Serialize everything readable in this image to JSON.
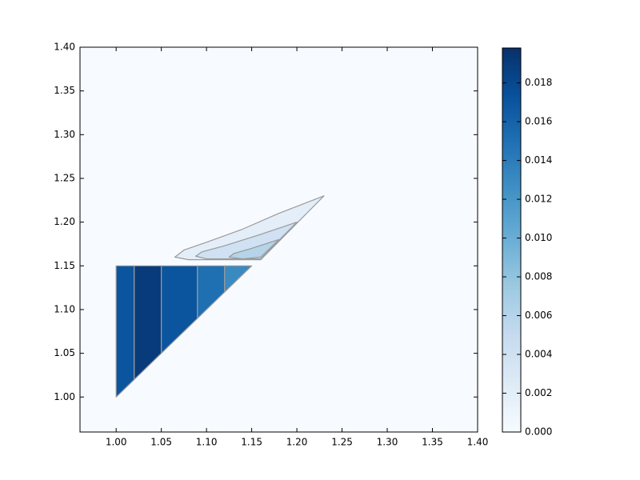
{
  "chart_data": {
    "type": "contourf",
    "colormap": "Blues",
    "xlim": [
      0.96,
      1.4
    ],
    "ylim": [
      0.96,
      1.4
    ],
    "xticks": [
      {
        "value": 1.0,
        "label": "1.00"
      },
      1.05,
      {
        "value": 1.1,
        "label": "1.10"
      },
      1.15,
      {
        "value": 1.2,
        "label": "1.20"
      },
      1.25,
      {
        "value": 1.3,
        "label": "1.30"
      },
      1.35,
      {
        "value": 1.4,
        "label": "1.40"
      }
    ],
    "yticks": [
      {
        "value": 1.0,
        "label": "1.00"
      },
      1.05,
      {
        "value": 1.1,
        "label": "1.10"
      },
      1.15,
      {
        "value": 1.2,
        "label": "1.20"
      },
      1.25,
      {
        "value": 1.3,
        "label": "1.30"
      },
      1.35,
      {
        "value": 1.4,
        "label": "1.40"
      }
    ],
    "clim": [
      0,
      0.0198
    ],
    "cticks": [
      {
        "value": 0,
        "label": "0.000"
      },
      0.002,
      0.004,
      0.006,
      0.008,
      {
        "value": 0.01,
        "label": "0.010"
      },
      0.012,
      0.014,
      0.016,
      0.018
    ],
    "base_value": 0,
    "regions": [
      {
        "x": [
          1.0,
          1.0,
          1.02,
          1.02
        ],
        "y": [
          1.0,
          1.15,
          1.15,
          1.02
        ],
        "value": 0.017
      },
      {
        "x": [
          1.02,
          1.02,
          1.05,
          1.05
        ],
        "y": [
          1.02,
          1.15,
          1.15,
          1.05
        ],
        "value": 0.019
      },
      {
        "x": [
          1.05,
          1.05,
          1.09,
          1.09
        ],
        "y": [
          1.05,
          1.15,
          1.15,
          1.09
        ],
        "value": 0.017
      },
      {
        "x": [
          1.09,
          1.09,
          1.12,
          1.12
        ],
        "y": [
          1.09,
          1.15,
          1.15,
          1.12
        ],
        "value": 0.015
      },
      {
        "x": [
          1.12,
          1.12,
          1.15
        ],
        "y": [
          1.12,
          1.15,
          1.15
        ],
        "value": 0.013
      },
      {
        "x": [
          1.23,
          1.18,
          1.14,
          1.1,
          1.075,
          1.065,
          1.08,
          1.16
        ],
        "y": [
          1.23,
          1.21,
          1.192,
          1.177,
          1.168,
          1.16,
          1.157,
          1.157
        ],
        "value": 0.002
      },
      {
        "x": [
          1.2,
          1.16,
          1.12,
          1.095,
          1.088,
          1.1,
          1.16
        ],
        "y": [
          1.2,
          1.186,
          1.173,
          1.166,
          1.161,
          1.158,
          1.158
        ],
        "value": 0.004
      },
      {
        "x": [
          1.18,
          1.15,
          1.13,
          1.125,
          1.14,
          1.16
        ],
        "y": [
          1.18,
          1.17,
          1.164,
          1.16,
          1.158,
          1.16
        ],
        "value": 0.006
      }
    ]
  }
}
